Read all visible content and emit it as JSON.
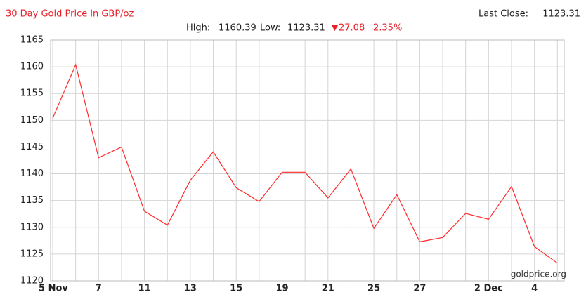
{
  "chart_data": {
    "type": "line",
    "title": "30 Day Gold Price in GBP/oz",
    "last_close_label": "Last Close:",
    "last_close": 1123.31,
    "high_label": "High:",
    "high": 1160.39,
    "low_label": "Low:",
    "low": 1123.31,
    "change": "27.08",
    "change_pct": "2.35%",
    "watermark": "goldprice.org",
    "categories": [
      "5 Nov",
      null,
      "7",
      null,
      "11",
      null,
      "13",
      null,
      "15",
      null,
      "19",
      null,
      "21",
      null,
      "25",
      null,
      "27",
      null,
      null,
      "2 Dec",
      null,
      "4",
      null
    ],
    "series": [
      {
        "name": "Gold Price",
        "color": "#ff2a2a",
        "values": [
          1150.4,
          1160.39,
          1143.0,
          1145.0,
          1133.0,
          1130.4,
          1138.8,
          1144.1,
          1137.4,
          1134.8,
          1140.3,
          1140.3,
          1135.5,
          1140.9,
          1129.8,
          1136.1,
          1127.3,
          1128.1,
          1132.6,
          1131.5,
          1137.6,
          1126.4,
          1123.31
        ]
      }
    ],
    "ylim": [
      1120,
      1165
    ],
    "yticks": [
      1120,
      1125,
      1130,
      1135,
      1140,
      1145,
      1150,
      1155,
      1160,
      1165
    ],
    "grid": true
  }
}
